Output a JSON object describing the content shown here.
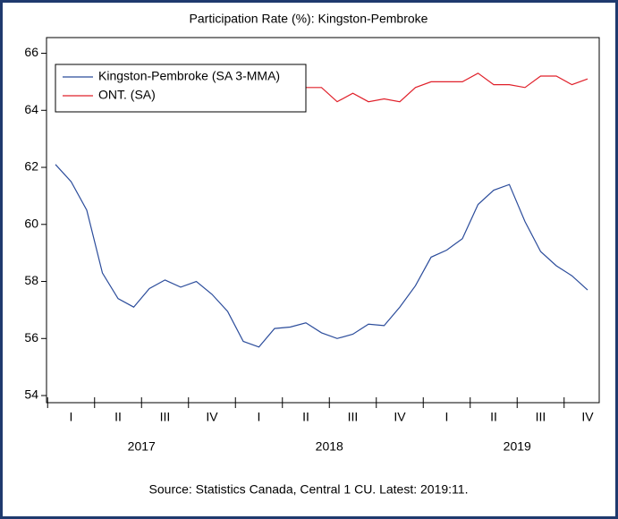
{
  "chart_data": {
    "type": "line",
    "title": "Participation Rate (%): Kingston-Pembroke",
    "source": "Source: Statistics Canada, Central 1 CU. Latest: 2019:11.",
    "categories": [
      null,
      null,
      null,
      null,
      null,
      null,
      null,
      null,
      null,
      null,
      null,
      null,
      null,
      null,
      null,
      null,
      null,
      null,
      null,
      null,
      null,
      null,
      null,
      null,
      null,
      null,
      null,
      null,
      null,
      null,
      null,
      null,
      null,
      null,
      null
    ],
    "quarter_labels": [
      "I",
      "II",
      "III",
      "IV",
      "I",
      "II",
      "III",
      "IV",
      "I",
      "II",
      "III",
      "IV"
    ],
    "year_labels": [
      "2017",
      "2018",
      "2019"
    ],
    "series": [
      {
        "name": "Kingston-Pembroke (SA 3-MMA)",
        "color": "#2b4c9b",
        "values": [
          62.1,
          61.5,
          60.5,
          58.3,
          57.4,
          57.1,
          57.75,
          58.05,
          57.8,
          58.0,
          57.55,
          56.95,
          55.9,
          55.7,
          56.35,
          56.4,
          56.55,
          56.2,
          56.0,
          56.15,
          56.5,
          56.45,
          57.1,
          57.85,
          58.85,
          59.1,
          59.5,
          60.7,
          61.2,
          61.4,
          60.1,
          59.05,
          58.55,
          58.2,
          57.7
        ]
      },
      {
        "name": "ONT. (SA)",
        "color": "#e0202a",
        "values": [
          null,
          null,
          null,
          null,
          null,
          null,
          null,
          null,
          null,
          null,
          null,
          null,
          null,
          null,
          null,
          null,
          64.8,
          64.8,
          64.3,
          64.6,
          64.3,
          64.4,
          64.3,
          64.8,
          65.0,
          65.0,
          65.0,
          65.3,
          64.9,
          64.9,
          64.8,
          65.2,
          65.2,
          64.9,
          65.1
        ]
      }
    ],
    "ylim": [
      53.75,
      66.55
    ],
    "yticks": [
      54,
      56,
      58,
      60,
      62,
      64,
      66
    ],
    "legend": "upper left"
  }
}
